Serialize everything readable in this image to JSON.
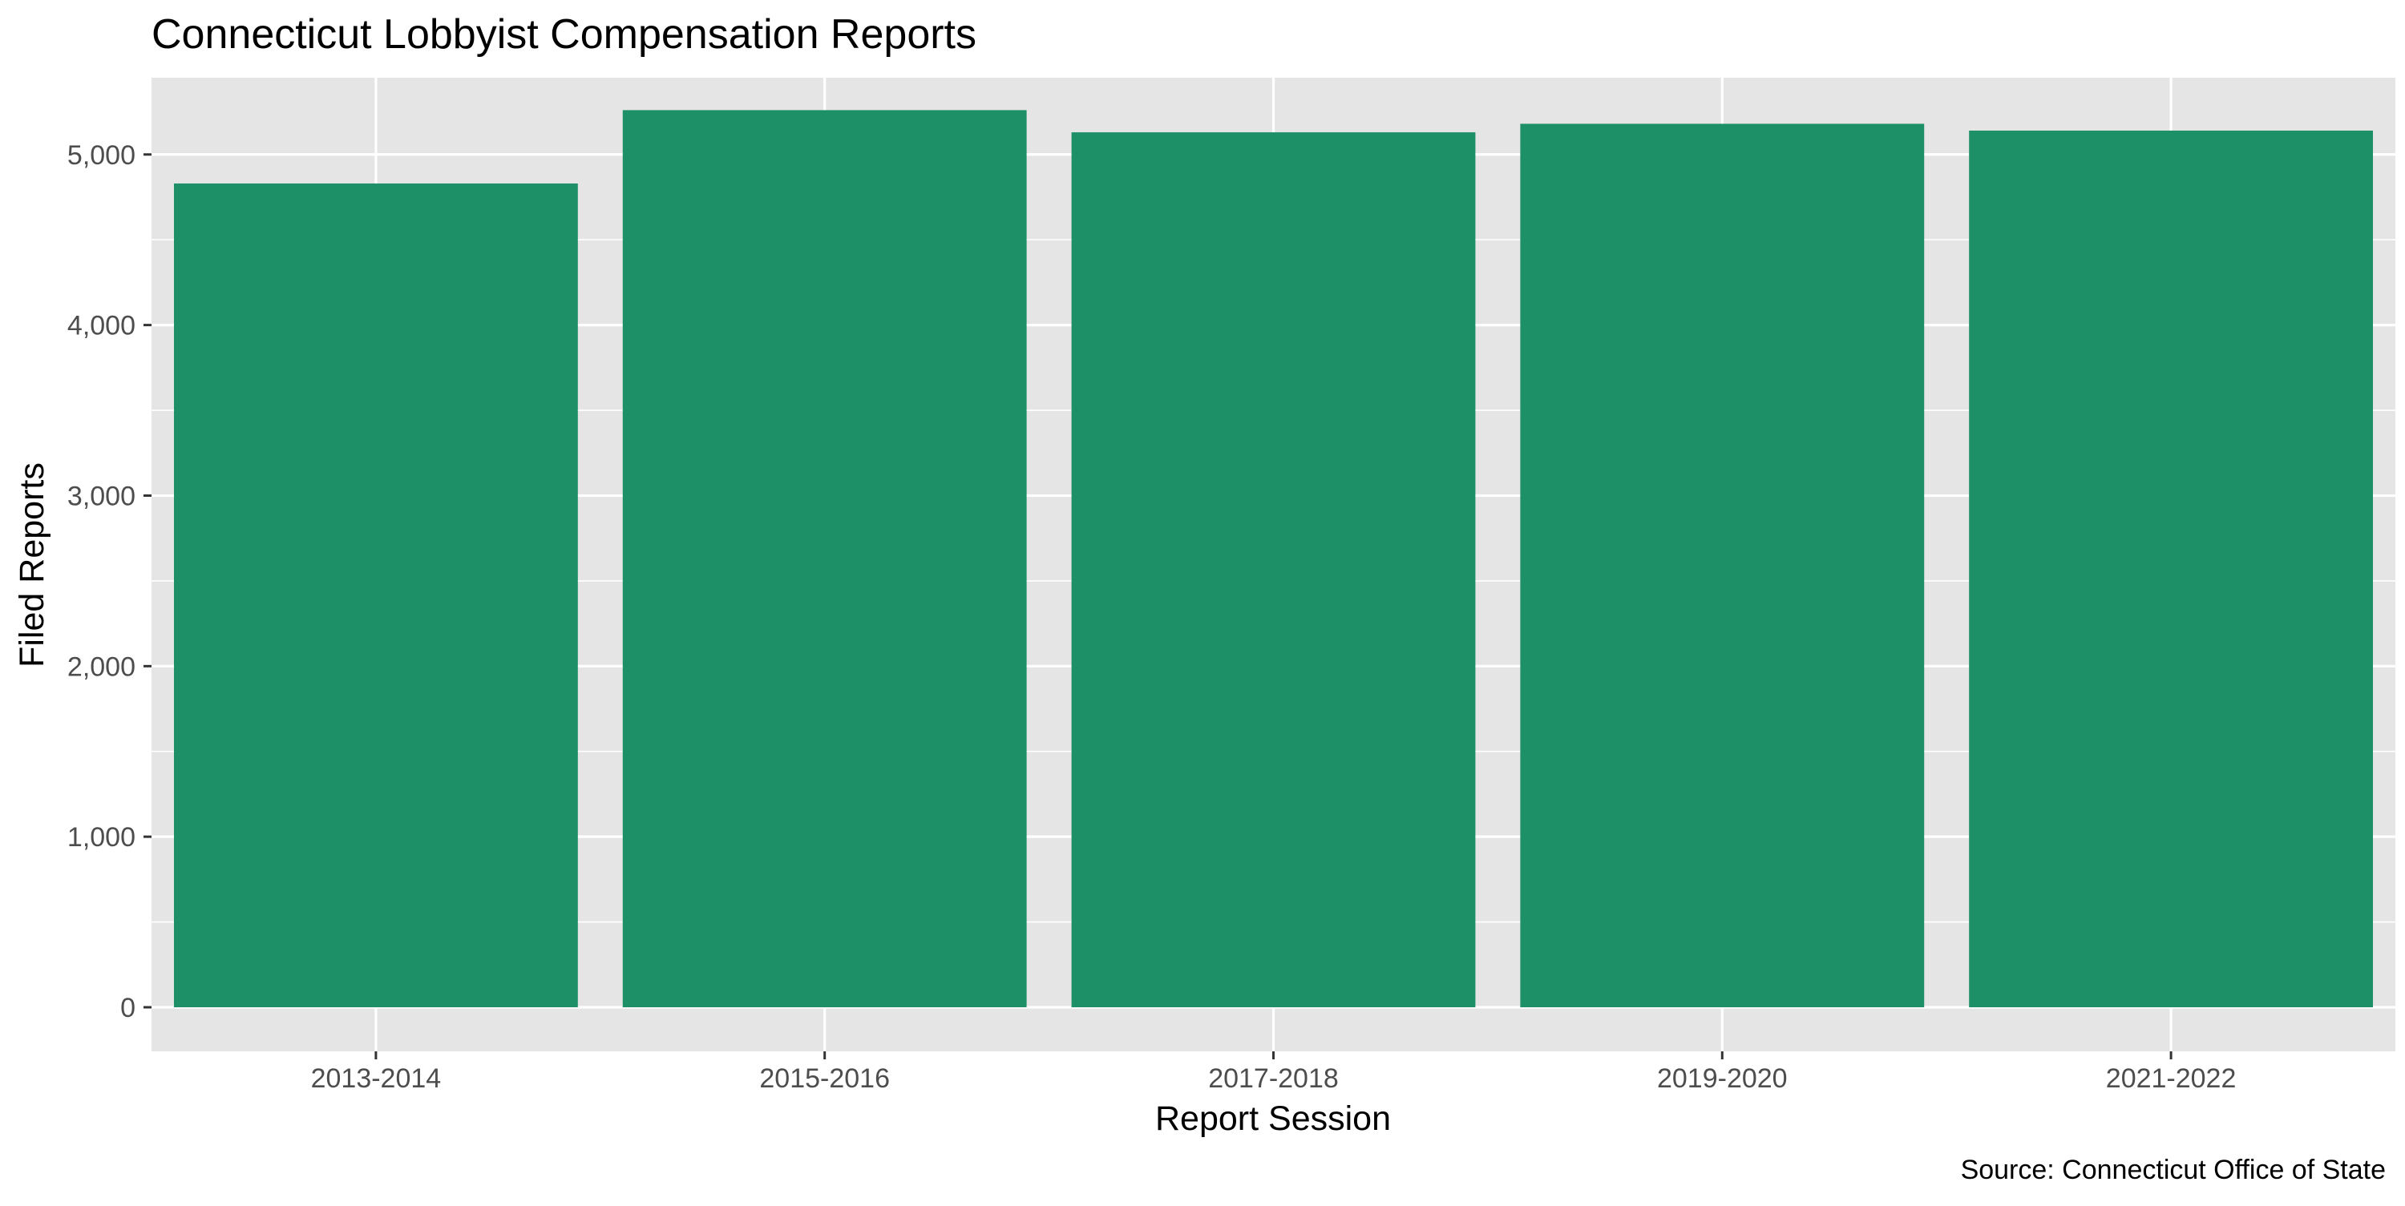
{
  "chart_data": {
    "type": "bar",
    "title": "Connecticut Lobbyist Compensation Reports",
    "xlabel": "Report Session",
    "ylabel": "Filed Reports",
    "caption": "Source: Connecticut Office of State",
    "categories": [
      "2013-2014",
      "2015-2016",
      "2017-2018",
      "2019-2020",
      "2021-2022"
    ],
    "values": [
      4830,
      5260,
      5130,
      5180,
      5140
    ],
    "ylim": [
      0,
      5450
    ],
    "y_ticks": [
      0,
      1000,
      2000,
      3000,
      4000,
      5000
    ],
    "y_tick_labels": [
      "0",
      "1,000",
      "2,000",
      "3,000",
      "4,000",
      "5,000"
    ],
    "grid": true,
    "legend": "none",
    "colors": {
      "bar": "#1E9068",
      "panel_background": "#E5E5E5",
      "grid_line": "#FFFFFF",
      "tick_text": "#4D4D4D",
      "tick_mark": "#333333"
    }
  }
}
